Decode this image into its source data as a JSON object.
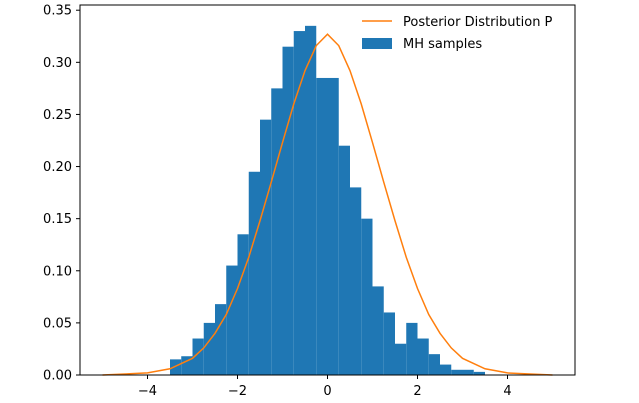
{
  "chart_data": {
    "type": "histogram+line",
    "title": "",
    "xlabel": "",
    "ylabel": "",
    "xlim": [
      -5.5,
      5.5
    ],
    "ylim": [
      0,
      0.355
    ],
    "grid": false,
    "legend_position": "top-right",
    "x_ticks": [
      -4,
      -2,
      0,
      2,
      4
    ],
    "x_tick_labels": [
      "−4",
      "−2",
      "0",
      "2",
      "4"
    ],
    "y_ticks": [
      0.0,
      0.05,
      0.1,
      0.15,
      0.2,
      0.25,
      0.3,
      0.35
    ],
    "y_tick_labels": [
      "0.00",
      "0.05",
      "0.10",
      "0.15",
      "0.20",
      "0.25",
      "0.30",
      "0.35"
    ],
    "series": [
      {
        "name": "Posterior Distribution P",
        "kind": "line",
        "color": "#ff7f0e",
        "x": [
          -5.0,
          -4.5,
          -4.0,
          -3.5,
          -3.0,
          -2.75,
          -2.5,
          -2.25,
          -2.0,
          -1.75,
          -1.5,
          -1.25,
          -1.0,
          -0.75,
          -0.5,
          -0.25,
          0.0,
          0.25,
          0.5,
          0.75,
          1.0,
          1.25,
          1.5,
          1.75,
          2.0,
          2.25,
          2.5,
          2.75,
          3.0,
          3.5,
          4.0,
          4.5,
          5.0
        ],
        "y": [
          0.0,
          0.001,
          0.002,
          0.006,
          0.016,
          0.026,
          0.04,
          0.058,
          0.083,
          0.113,
          0.148,
          0.185,
          0.223,
          0.26,
          0.292,
          0.316,
          0.327,
          0.316,
          0.292,
          0.26,
          0.223,
          0.185,
          0.148,
          0.113,
          0.083,
          0.058,
          0.04,
          0.026,
          0.016,
          0.006,
          0.002,
          0.001,
          0.0
        ]
      },
      {
        "name": "MH samples",
        "kind": "bar",
        "color": "#1f77b4",
        "bin_edges": [
          -3.5,
          -3.25,
          -3.0,
          -2.75,
          -2.5,
          -2.25,
          -2.0,
          -1.75,
          -1.5,
          -1.25,
          -1.0,
          -0.75,
          -0.5,
          -0.25,
          0.0,
          0.25,
          0.5,
          0.75,
          1.0,
          1.25,
          1.5,
          1.75,
          2.0,
          2.25,
          2.5,
          2.75,
          3.0,
          3.25,
          3.5
        ],
        "heights": [
          0.015,
          0.018,
          0.035,
          0.05,
          0.068,
          0.105,
          0.135,
          0.195,
          0.245,
          0.275,
          0.315,
          0.33,
          0.335,
          0.285,
          0.285,
          0.22,
          0.18,
          0.15,
          0.085,
          0.06,
          0.03,
          0.05,
          0.035,
          0.02,
          0.01,
          0.005,
          0.005,
          0.003
        ]
      }
    ]
  }
}
